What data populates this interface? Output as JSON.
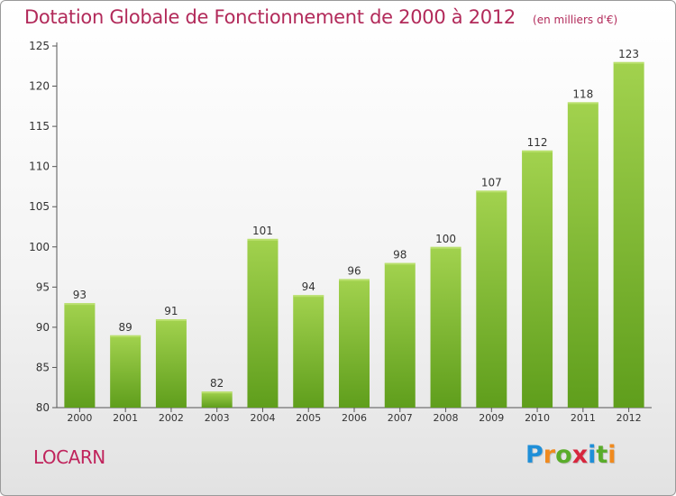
{
  "title": "Dotation Globale de Fonctionnement de 2000 à 2012",
  "subtitle": "(en milliers d'€)",
  "commune": "LOCARN",
  "logo": {
    "text": "Proxiti",
    "letters": [
      "P",
      "r",
      "o",
      "x",
      "i",
      "t",
      "i"
    ],
    "colors": [
      "#1f8fd8",
      "#f08a1e",
      "#5aac2a",
      "#d7263d",
      "#1f8fd8",
      "#5aac2a",
      "#f08a1e"
    ]
  },
  "colors": {
    "bar_top": "#a2d24e",
    "bar_bottom": "#5f9e1c",
    "title": "#b22a5a"
  },
  "chart_data": {
    "type": "bar",
    "categories": [
      "2000",
      "2001",
      "2002",
      "2003",
      "2004",
      "2005",
      "2006",
      "2007",
      "2008",
      "2009",
      "2010",
      "2011",
      "2012"
    ],
    "values": [
      93,
      89,
      91,
      82,
      101,
      94,
      96,
      98,
      100,
      107,
      112,
      118,
      123
    ],
    "ylim": [
      80,
      125
    ],
    "yticks": [
      80,
      85,
      90,
      95,
      100,
      105,
      110,
      115,
      120,
      125
    ],
    "grid": false,
    "legend": "none"
  }
}
